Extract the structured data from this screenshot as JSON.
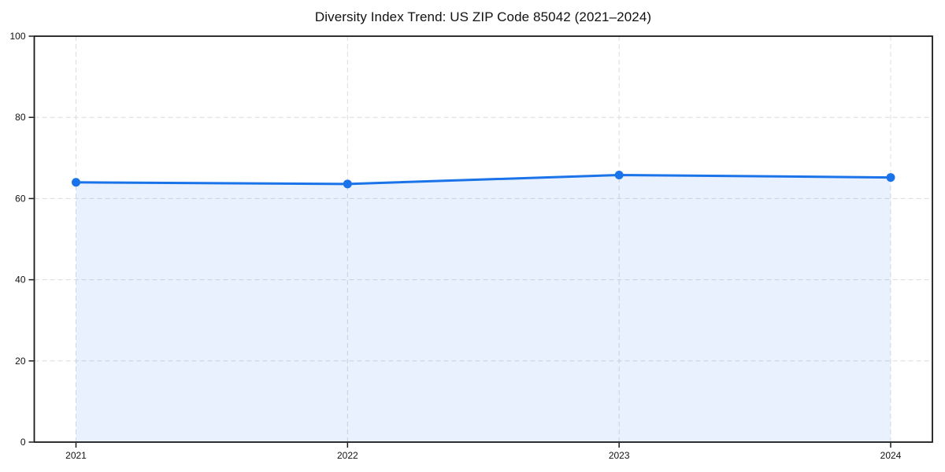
{
  "chart_data": {
    "type": "area",
    "title": "Diversity Index Trend: US ZIP Code 85042 (2021–2024)",
    "categories": [
      "2021",
      "2022",
      "2023",
      "2024"
    ],
    "values": [
      64.0,
      63.6,
      65.8,
      65.2
    ],
    "series_name": "Diversity Index",
    "xlabel": "",
    "ylabel": "",
    "ylim": [
      0,
      100
    ],
    "yticks": [
      0,
      20,
      40,
      60,
      80,
      100
    ],
    "grid": "both",
    "grid_style": "dashed",
    "legend": "none",
    "colors": {
      "line": "#1a73e8",
      "marker": "#1a73e8",
      "fill": "#1a73e8",
      "fill_opacity": 0.1,
      "grid": "#dcdcdc",
      "axis": "#1a1a1a",
      "text": "#111111",
      "background": "#ffffff"
    }
  }
}
